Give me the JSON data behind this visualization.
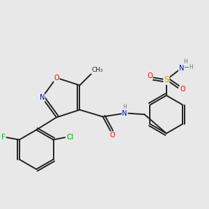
{
  "bg_color": "#e8e8e8",
  "bond_color": "#222222",
  "atom_colors": {
    "O": "#ff0000",
    "N": "#0000cc",
    "S": "#ccaa00",
    "F": "#00aa00",
    "Cl": "#00aa00",
    "H": "#777777",
    "C": "#222222"
  },
  "font_size": 7.0,
  "lw": 1.4
}
